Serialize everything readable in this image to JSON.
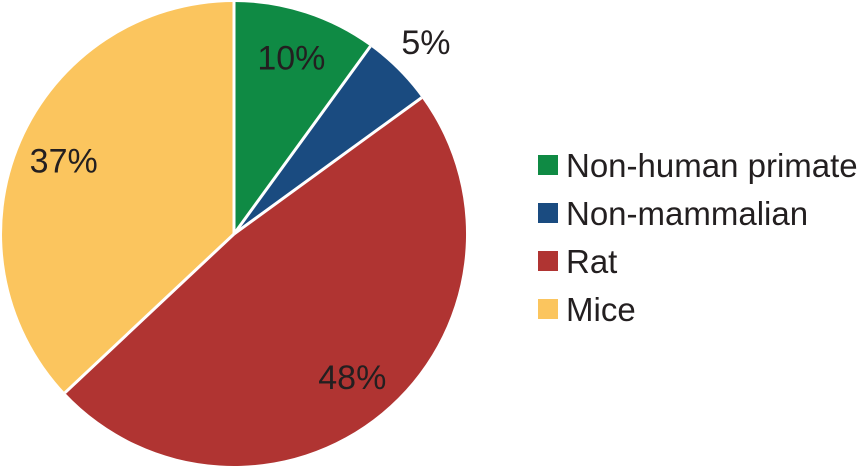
{
  "chart_data": {
    "type": "pie",
    "title": "",
    "categories": [
      "Non-human primate",
      "Non-mammalian",
      "Rat",
      "Mice"
    ],
    "values": [
      10,
      5,
      48,
      37
    ],
    "value_labels": [
      "10%",
      "5%",
      "48%",
      "37%"
    ],
    "colors": [
      "#0f8a44",
      "#1a4b80",
      "#b03432",
      "#fbc55e"
    ],
    "start_angle_deg": 0,
    "direction": "clockwise",
    "legend_position": "right",
    "label_color": "#231f20",
    "separator_color": "#ffffff",
    "background_color": "#ffffff"
  },
  "legend": {
    "items": [
      {
        "label": "Non-human primate",
        "color": "#0f8a44"
      },
      {
        "label": "Non-mammalian",
        "color": "#1a4b80"
      },
      {
        "label": "Rat",
        "color": "#b03432"
      },
      {
        "label": "Mice",
        "color": "#fbc55e"
      }
    ]
  }
}
